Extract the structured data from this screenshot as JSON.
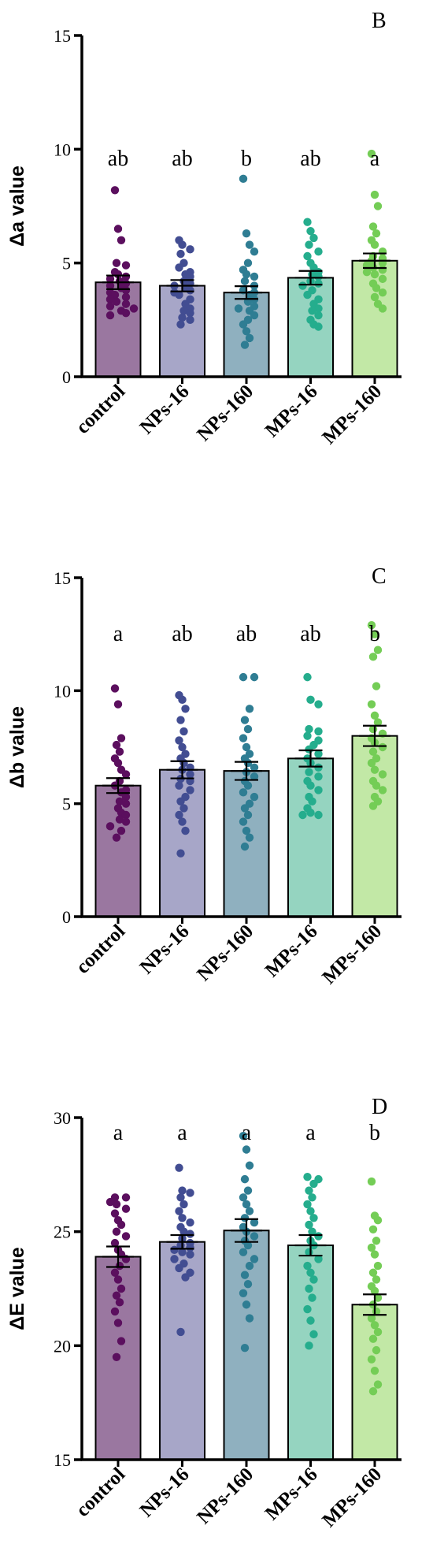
{
  "chart_data": [
    {
      "type": "bar",
      "panel_label": "B",
      "ylabel": "Δa value",
      "ylim": [
        0,
        15
      ],
      "yticks": [
        0,
        5,
        10,
        15
      ],
      "categories": [
        "control",
        "NPs-16",
        "NPs-160",
        "MPs-16",
        "MPs-160"
      ],
      "values": [
        4.15,
        4.0,
        3.7,
        4.35,
        5.1
      ],
      "sem": [
        0.3,
        0.25,
        0.28,
        0.3,
        0.32
      ],
      "significance": [
        "ab",
        "ab",
        "b",
        "ab",
        "a"
      ],
      "points": [
        [
          8.2,
          6.5,
          6.0,
          5.0,
          4.9,
          4.6,
          4.5,
          4.4,
          4.3,
          4.2,
          4.1,
          4.0,
          3.9,
          3.8,
          3.7,
          3.6,
          3.5,
          3.4,
          3.3,
          3.2,
          3.1,
          3.0,
          2.9,
          2.8,
          2.7
        ],
        [
          6.0,
          5.8,
          5.6,
          5.4,
          5.0,
          4.8,
          4.6,
          4.5,
          4.4,
          4.2,
          4.1,
          4.0,
          3.9,
          3.8,
          3.7,
          3.6,
          3.4,
          3.2,
          3.0,
          2.9,
          2.8,
          2.6,
          2.5,
          2.3
        ],
        [
          8.7,
          6.3,
          5.8,
          5.5,
          5.0,
          4.7,
          4.5,
          4.4,
          4.2,
          4.0,
          3.8,
          3.7,
          3.6,
          3.4,
          3.3,
          3.1,
          3.0,
          2.9,
          2.7,
          2.5,
          2.3,
          2.0,
          1.7,
          1.4
        ],
        [
          6.8,
          6.4,
          6.1,
          5.8,
          5.5,
          5.3,
          5.0,
          4.8,
          4.6,
          4.5,
          4.4,
          4.2,
          4.1,
          4.0,
          3.8,
          3.6,
          3.4,
          3.2,
          3.0,
          2.9,
          2.7,
          2.5,
          2.3,
          2.2
        ],
        [
          9.8,
          8.0,
          7.5,
          6.6,
          6.3,
          6.0,
          5.8,
          5.5,
          5.3,
          5.2,
          5.1,
          5.0,
          4.9,
          4.8,
          4.7,
          4.6,
          4.5,
          4.3,
          4.1,
          3.9,
          3.7,
          3.5,
          3.2,
          3.0
        ]
      ]
    },
    {
      "type": "bar",
      "panel_label": "C",
      "ylabel": "Δb value",
      "ylim": [
        0,
        15
      ],
      "yticks": [
        0,
        5,
        10,
        15
      ],
      "categories": [
        "control",
        "NPs-16",
        "NPs-160",
        "MPs-16",
        "MPs-160"
      ],
      "values": [
        5.8,
        6.5,
        6.45,
        7.0,
        8.0
      ],
      "sem": [
        0.33,
        0.38,
        0.4,
        0.36,
        0.45
      ],
      "significance": [
        "a",
        "ab",
        "ab",
        "ab",
        "b"
      ],
      "points": [
        [
          10.1,
          9.4,
          7.9,
          7.6,
          7.3,
          7.0,
          6.8,
          6.5,
          6.3,
          6.0,
          5.8,
          5.6,
          5.5,
          5.3,
          5.1,
          5.0,
          4.8,
          4.6,
          4.5,
          4.3,
          4.2,
          4.0,
          3.8,
          3.5
        ],
        [
          9.8,
          9.6,
          9.2,
          8.7,
          8.2,
          7.8,
          7.5,
          7.2,
          7.0,
          6.8,
          6.6,
          6.5,
          6.3,
          6.1,
          6.0,
          5.8,
          5.6,
          5.3,
          5.1,
          4.8,
          4.5,
          4.2,
          3.8,
          2.8
        ],
        [
          10.6,
          10.6,
          9.2,
          8.7,
          8.3,
          7.9,
          7.5,
          7.2,
          7.0,
          6.8,
          6.6,
          6.4,
          6.2,
          6.0,
          5.8,
          5.5,
          5.3,
          5.0,
          4.8,
          4.5,
          4.2,
          3.8,
          3.5,
          3.1
        ],
        [
          10.6,
          9.6,
          9.4,
          8.3,
          8.2,
          8.0,
          7.8,
          7.6,
          7.4,
          7.2,
          7.0,
          6.8,
          6.6,
          6.4,
          6.2,
          6.0,
          5.8,
          5.6,
          5.3,
          5.1,
          4.8,
          4.6,
          4.5,
          4.5
        ],
        [
          12.9,
          12.5,
          11.8,
          11.5,
          10.2,
          9.4,
          8.9,
          8.6,
          8.3,
          8.1,
          7.9,
          7.7,
          7.5,
          7.3,
          7.0,
          6.8,
          6.5,
          6.3,
          6.0,
          5.8,
          5.6,
          5.3,
          5.1,
          4.9
        ]
      ]
    },
    {
      "type": "bar",
      "panel_label": "D",
      "ylabel": "ΔE value",
      "ylim": [
        15,
        30
      ],
      "yticks": [
        15,
        20,
        25,
        30
      ],
      "categories": [
        "control",
        "NPs-16",
        "NPs-160",
        "MPs-16",
        "MPs-160"
      ],
      "values": [
        23.9,
        24.55,
        25.05,
        24.4,
        21.8
      ],
      "sem": [
        0.45,
        0.3,
        0.5,
        0.45,
        0.45
      ],
      "significance": [
        "a",
        "a",
        "a",
        "a",
        "b"
      ],
      "points": [
        [
          26.5,
          26.5,
          26.3,
          26.2,
          26.0,
          25.8,
          25.5,
          25.3,
          25.0,
          24.8,
          24.5,
          24.2,
          24.0,
          23.8,
          23.5,
          23.2,
          22.9,
          22.5,
          22.2,
          21.9,
          21.5,
          21.0,
          20.2,
          19.5
        ],
        [
          27.8,
          26.8,
          26.7,
          26.5,
          26.2,
          25.9,
          25.6,
          25.4,
          25.2,
          25.0,
          24.9,
          24.7,
          24.5,
          24.4,
          24.3,
          24.2,
          24.1,
          24.0,
          23.8,
          23.6,
          23.4,
          23.2,
          23.0,
          20.6
        ],
        [
          29.2,
          28.6,
          27.9,
          27.3,
          26.8,
          26.5,
          26.2,
          25.9,
          25.6,
          25.4,
          25.2,
          25.0,
          24.8,
          24.6,
          24.4,
          24.1,
          23.8,
          23.5,
          23.1,
          22.7,
          22.3,
          21.8,
          21.2,
          19.9
        ],
        [
          27.4,
          27.3,
          27.1,
          26.8,
          26.5,
          26.2,
          25.9,
          25.6,
          25.3,
          25.0,
          24.8,
          24.6,
          24.4,
          24.1,
          23.8,
          23.5,
          23.2,
          22.9,
          22.5,
          22.1,
          21.6,
          21.1,
          20.5,
          20.0
        ],
        [
          27.2,
          25.7,
          25.5,
          25.1,
          24.6,
          24.3,
          24.0,
          23.5,
          23.2,
          22.9,
          22.6,
          22.4,
          22.1,
          21.8,
          21.5,
          21.2,
          20.9,
          20.6,
          20.3,
          19.8,
          19.4,
          18.9,
          18.3,
          18.0
        ]
      ]
    }
  ],
  "colors": {
    "bars": [
      "#9a77a0",
      "#a7a6c8",
      "#8fb0bf",
      "#95d4c0",
      "#c2e8a6"
    ],
    "points": [
      "#5b0f5e",
      "#424d92",
      "#2f7d93",
      "#25ad8d",
      "#74cd56"
    ],
    "axis": "#000000"
  }
}
